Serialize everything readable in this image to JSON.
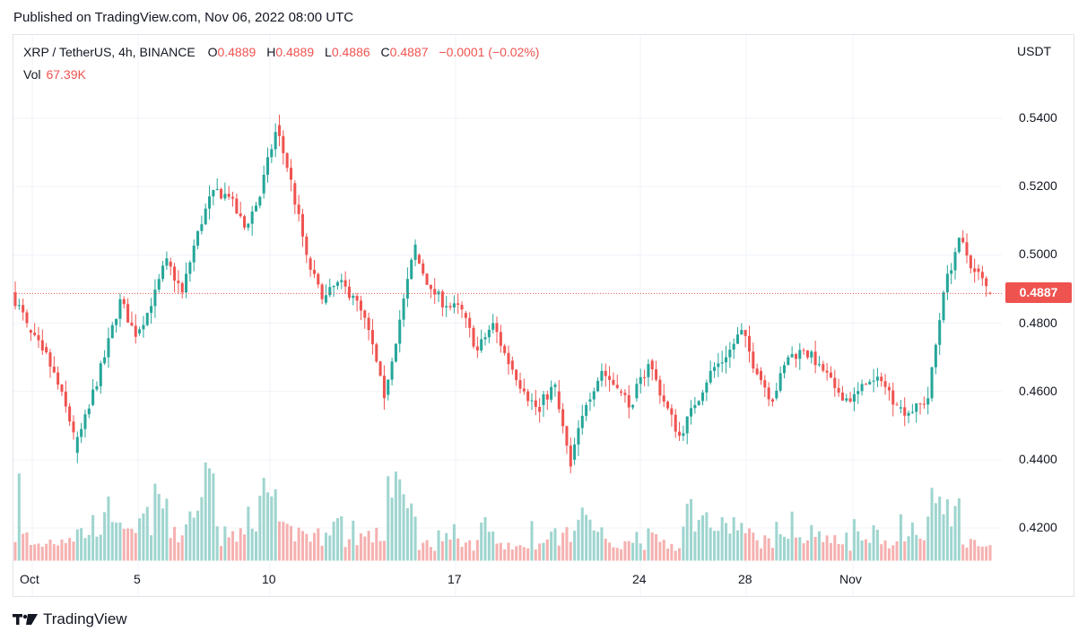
{
  "header": {
    "published": "Published on TradingView.com, Nov 06, 2022 08:00 UTC"
  },
  "legend": {
    "symbol": "XRP / TetherUS, 4h, BINANCE",
    "o_label": "O",
    "o": "0.4889",
    "h_label": "H",
    "h": "0.4889",
    "l_label": "L",
    "l": "0.4886",
    "c_label": "C",
    "c": "0.4887",
    "change": "−0.0001 (−0.02%)",
    "vol_label": "Vol",
    "vol": "67.39K"
  },
  "axis": {
    "unit": "USDT",
    "last_price": "0.4887"
  },
  "brand": {
    "name": "TradingView"
  },
  "colors": {
    "up": "#26a69a",
    "down": "#ef5350",
    "vol_up": "#9fd5cf",
    "vol_down": "#f5b1b0",
    "grid": "#f0f3fa",
    "text": "#131722"
  },
  "chart_data": {
    "type": "candlestick",
    "title": "XRP / TetherUS, 4h, BINANCE",
    "ylabel": "USDT",
    "ylim": [
      0.41,
      0.555
    ],
    "yticks": [
      "0.4200",
      "0.4400",
      "0.4600",
      "0.4800",
      "0.5000",
      "0.5200",
      "0.5400"
    ],
    "xtick_labels": [
      "Oct",
      "5",
      "10",
      "17",
      "24",
      "28",
      "Nov"
    ],
    "last_price": 0.4887,
    "series": [
      {
        "name": "price",
        "segments": [
          [
            0.489,
            0.48
          ],
          [
            0.478,
            0.472
          ],
          [
            0.473,
            0.462
          ],
          [
            0.462,
            0.448
          ],
          [
            0.442,
            0.455
          ],
          [
            0.456,
            0.47
          ],
          [
            0.47,
            0.487
          ],
          [
            0.487,
            0.476
          ],
          [
            0.477,
            0.485
          ],
          [
            0.485,
            0.499
          ],
          [
            0.498,
            0.489
          ],
          [
            0.489,
            0.507
          ],
          [
            0.507,
            0.519
          ],
          [
            0.519,
            0.517
          ],
          [
            0.517,
            0.508
          ],
          [
            0.508,
            0.517
          ],
          [
            0.518,
            0.536
          ],
          [
            0.538,
            0.522
          ],
          [
            0.521,
            0.5
          ],
          [
            0.499,
            0.487
          ],
          [
            0.486,
            0.492
          ],
          [
            0.492,
            0.488
          ],
          [
            0.488,
            0.478
          ],
          [
            0.478,
            0.458
          ],
          [
            0.459,
            0.481
          ],
          [
            0.481,
            0.503
          ],
          [
            0.5,
            0.49
          ],
          [
            0.49,
            0.485
          ],
          [
            0.485,
            0.484
          ],
          [
            0.483,
            0.472
          ],
          [
            0.472,
            0.48
          ],
          [
            0.48,
            0.468
          ],
          [
            0.469,
            0.46
          ],
          [
            0.46,
            0.454
          ],
          [
            0.456,
            0.462
          ],
          [
            0.46,
            0.438
          ],
          [
            0.44,
            0.456
          ],
          [
            0.457,
            0.466
          ],
          [
            0.466,
            0.461
          ],
          [
            0.46,
            0.456
          ],
          [
            0.458,
            0.468
          ],
          [
            0.469,
            0.457
          ],
          [
            0.457,
            0.447
          ],
          [
            0.447,
            0.456
          ],
          [
            0.456,
            0.466
          ],
          [
            0.466,
            0.47
          ],
          [
            0.47,
            0.478
          ],
          [
            0.478,
            0.465
          ],
          [
            0.466,
            0.457
          ],
          [
            0.458,
            0.47
          ],
          [
            0.47,
            0.472
          ],
          [
            0.472,
            0.468
          ],
          [
            0.468,
            0.461
          ],
          [
            0.461,
            0.457
          ],
          [
            0.457,
            0.462
          ],
          [
            0.462,
            0.463
          ],
          [
            0.463,
            0.456
          ],
          [
            0.455,
            0.454
          ],
          [
            0.454,
            0.458
          ],
          [
            0.458,
            0.489
          ],
          [
            0.489,
            0.505
          ],
          [
            0.505,
            0.495
          ],
          [
            0.496,
            0.4887
          ]
        ]
      },
      {
        "name": "volume",
        "values": [
          [
            0.9,
            0.3
          ],
          [
            0.6,
            0.2
          ],
          [
            0.5,
            0.25
          ],
          [
            0.4,
            0.3
          ],
          [
            0.35,
            0.35
          ],
          [
            0.45,
            0.4
          ],
          [
            0.6,
            0.35
          ],
          [
            0.5,
            0.3
          ],
          [
            0.5,
            0.35
          ],
          [
            0.7,
            0.4
          ],
          [
            0.5,
            0.3
          ],
          [
            0.6,
            0.35
          ],
          [
            1.0,
            0.35
          ],
          [
            0.6,
            0.3
          ],
          [
            0.55,
            0.3
          ],
          [
            0.6,
            0.3
          ],
          [
            0.8,
            0.4
          ],
          [
            0.75,
            0.35
          ],
          [
            0.7,
            0.35
          ],
          [
            0.6,
            0.3
          ],
          [
            0.45,
            0.25
          ],
          [
            0.45,
            0.25
          ],
          [
            0.5,
            0.3
          ],
          [
            0.7,
            0.3
          ],
          [
            1.0,
            0.4
          ],
          [
            0.6,
            0.3
          ],
          [
            0.5,
            0.2
          ],
          [
            0.4,
            0.2
          ],
          [
            0.35,
            0.2
          ],
          [
            0.3,
            0.2
          ],
          [
            0.45,
            0.25
          ],
          [
            0.35,
            0.2
          ],
          [
            0.35,
            0.2
          ],
          [
            0.4,
            0.2
          ],
          [
            0.35,
            0.2
          ],
          [
            1.0,
            0.3
          ],
          [
            0.6,
            0.3
          ],
          [
            0.4,
            0.2
          ],
          [
            0.3,
            0.2
          ],
          [
            0.35,
            0.2
          ],
          [
            0.35,
            0.2
          ],
          [
            0.4,
            0.25
          ],
          [
            0.35,
            0.2
          ],
          [
            0.6,
            0.3
          ],
          [
            0.5,
            0.3
          ],
          [
            0.4,
            0.25
          ],
          [
            0.45,
            0.3
          ],
          [
            0.5,
            0.3
          ],
          [
            0.4,
            0.25
          ],
          [
            0.35,
            0.2
          ],
          [
            0.45,
            0.25
          ],
          [
            0.4,
            0.25
          ],
          [
            0.35,
            0.25
          ],
          [
            0.35,
            0.2
          ],
          [
            0.4,
            0.25
          ],
          [
            0.35,
            0.2
          ],
          [
            0.4,
            0.25
          ],
          [
            0.45,
            0.25
          ],
          [
            0.4,
            0.25
          ],
          [
            0.9,
            0.4
          ],
          [
            0.6,
            0.35
          ],
          [
            0.3,
            0.2
          ],
          [
            0.25,
            0.15
          ]
        ]
      }
    ]
  }
}
